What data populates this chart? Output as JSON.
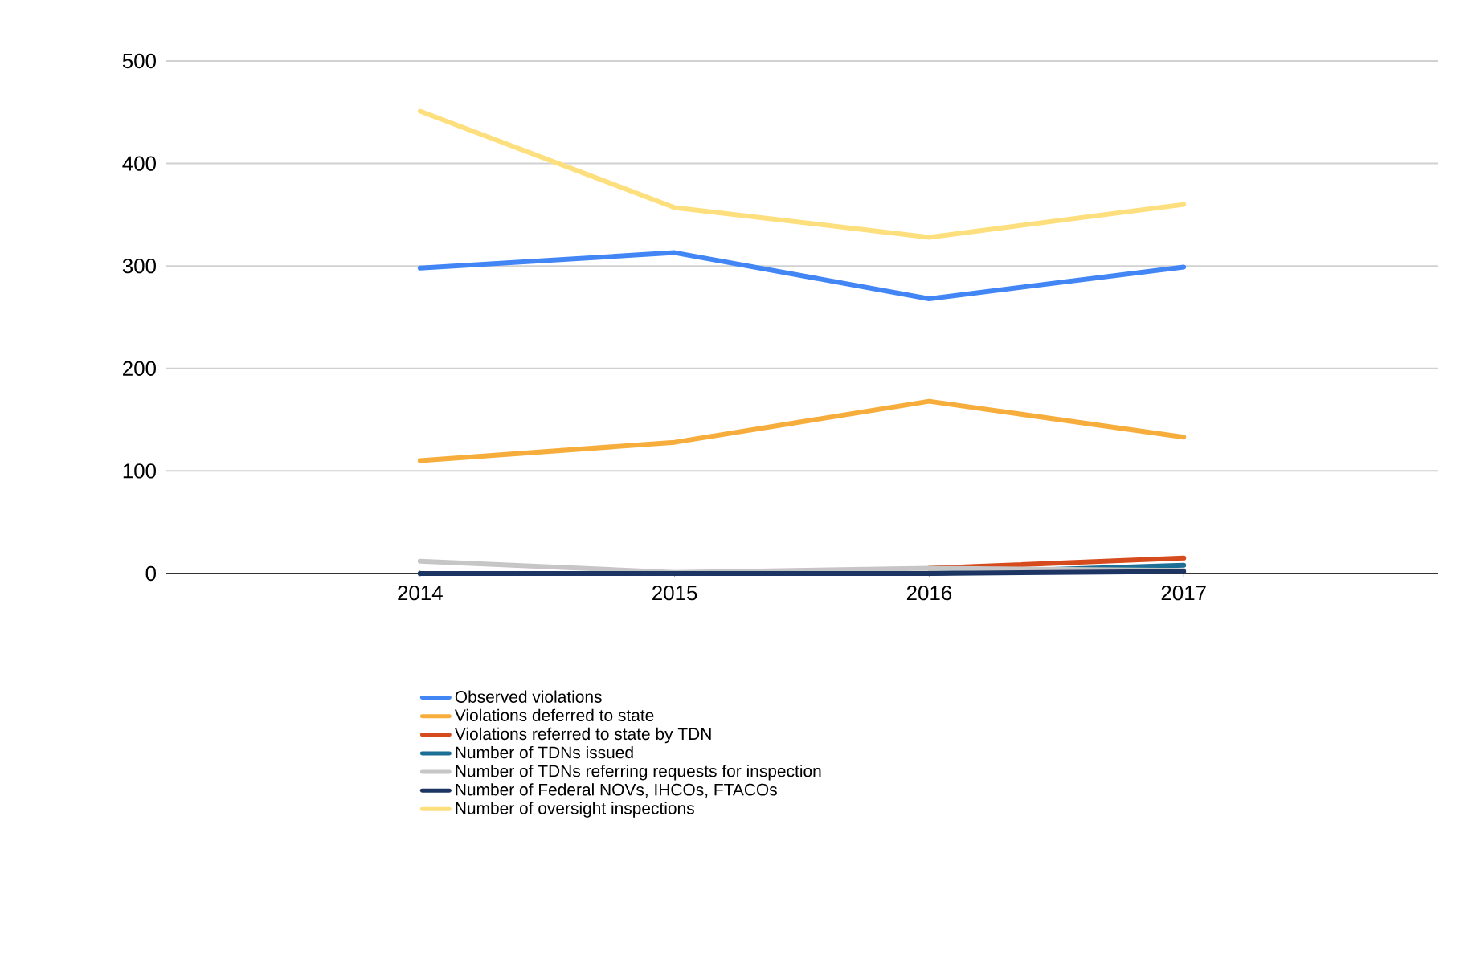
{
  "chart_data": {
    "type": "line",
    "categories": [
      "2014",
      "2015",
      "2016",
      "2017"
    ],
    "series": [
      {
        "name": "Observed violations",
        "color": "#4285f4",
        "values": [
          298,
          313,
          268,
          299
        ]
      },
      {
        "name": "Violations deferred to state",
        "color": "#f6ad3c",
        "values": [
          110,
          128,
          168,
          133
        ]
      },
      {
        "name": "Violations referred to state by TDN",
        "color": "#d64b1e",
        "values": [
          null,
          null,
          5,
          15
        ]
      },
      {
        "name": "Number of TDNs issued",
        "color": "#1d6f96",
        "values": [
          0,
          0,
          0,
          8
        ]
      },
      {
        "name": "Number of TDNs referring requests for inspection",
        "color": "#c6c6c6",
        "values": [
          12,
          1,
          5,
          3
        ]
      },
      {
        "name": "Number of Federal NOVs, IHCOs, FTACOs",
        "color": "#1c3562",
        "values": [
          0,
          0,
          0,
          2
        ]
      },
      {
        "name": "Number of oversight inspections",
        "color": "#fddf7e",
        "values": [
          451,
          357,
          328,
          360
        ]
      }
    ],
    "ylim": [
      0,
      500
    ],
    "yticks": [
      0,
      100,
      200,
      300,
      400,
      500
    ],
    "grid": "y",
    "legend": "bottom",
    "marker": "none",
    "line_style": "solid"
  }
}
